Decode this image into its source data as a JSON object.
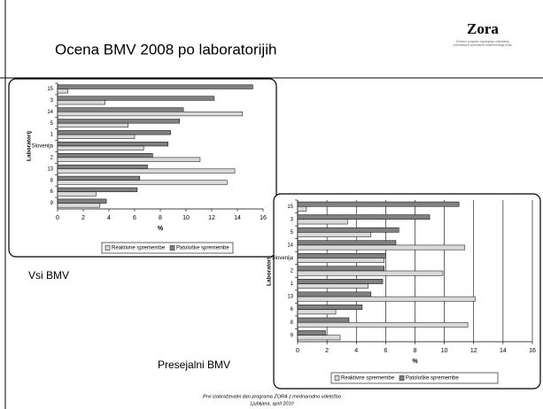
{
  "slide": {
    "title": "Ocena BMV 2008 po laboratorijih",
    "logo": "Zora",
    "logo_sub": "Državni program zgodnjega odkrivanja predrakavih sprememb materničnega vratu",
    "footer": [
      "Prvi izobraževalni dan programa ZORA z mednarodno udeležbo",
      "Ljubljana, april 2010"
    ]
  },
  "chart_data": [
    {
      "type": "hbar",
      "title": "Vsi BMV",
      "y_label": "Laboratorij",
      "x_label": "%",
      "categories": [
        "15",
        "3",
        "14",
        "5",
        "1",
        "Slovenija",
        "2",
        "13",
        "8",
        "6",
        "9"
      ],
      "series": [
        {
          "name": "Reaktivne spremembe",
          "color": "#d9d9d9",
          "values": [
            0.8,
            3.7,
            14.4,
            5.5,
            6.0,
            6.7,
            11.1,
            13.8,
            13.2,
            3.0,
            3.3
          ]
        },
        {
          "name": "Patološke spremembe",
          "color": "#808080",
          "values": [
            15.2,
            12.2,
            9.8,
            9.5,
            8.8,
            8.6,
            7.4,
            7.0,
            6.4,
            6.2,
            3.8
          ]
        }
      ],
      "xlim": [
        0,
        16
      ],
      "xticks": [
        0,
        2,
        4,
        6,
        8,
        10,
        12,
        14,
        16
      ],
      "grid": false,
      "legend": "bottom"
    },
    {
      "type": "hbar",
      "title": "Presejalni BMV",
      "y_label": "Laboratorij",
      "x_label": "%",
      "categories": [
        "15",
        "3",
        "5",
        "14",
        "Slovenija",
        "2",
        "1",
        "13",
        "6",
        "8",
        "9"
      ],
      "series": [
        {
          "name": "Reaktivne spremembe",
          "color": "#d9d9d9",
          "values": [
            0.6,
            3.4,
            5.0,
            11.4,
            5.9,
            9.9,
            4.8,
            12.1,
            2.6,
            11.6,
            2.9
          ]
        },
        {
          "name": "Patološke spremembe",
          "color": "#808080",
          "values": [
            11.0,
            9.0,
            6.9,
            6.7,
            6.0,
            5.9,
            5.8,
            5.0,
            4.4,
            3.5,
            1.9
          ]
        }
      ],
      "xlim": [
        0,
        16
      ],
      "xticks": [
        0,
        2,
        4,
        6,
        8,
        10,
        12,
        14,
        16
      ],
      "grid": true,
      "legend": "bottom"
    }
  ]
}
